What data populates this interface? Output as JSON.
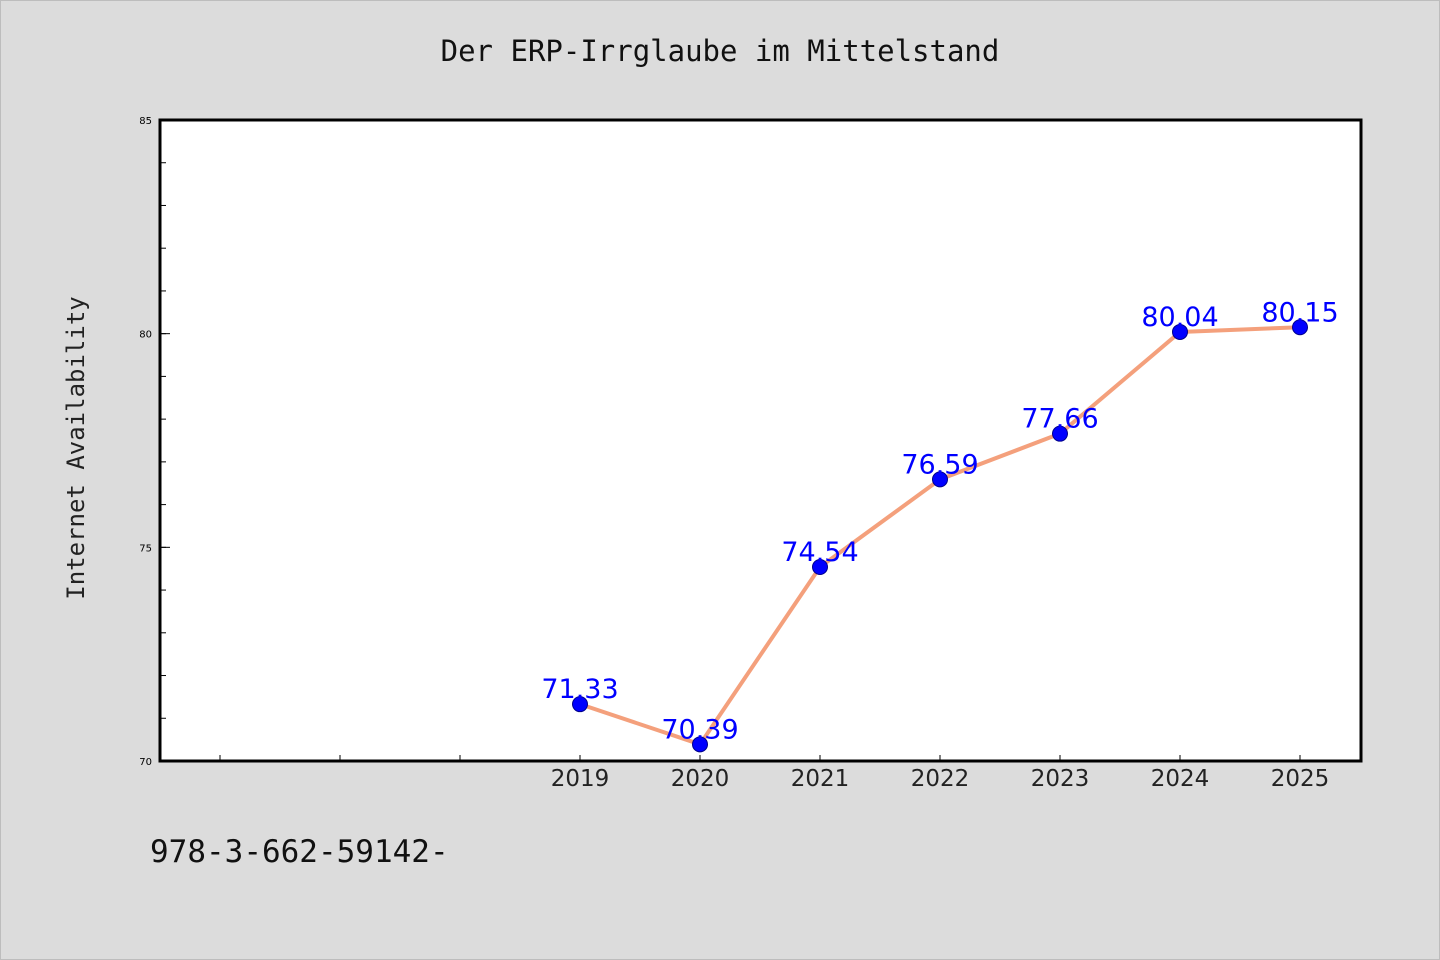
{
  "chart_data": {
    "type": "line",
    "title": "Der ERP-Irrglaube im Mittelstand",
    "xlabel": "",
    "ylabel": "Internet Availability",
    "categories": [
      "",
      "",
      "",
      "2019",
      "2020",
      "2021",
      "2022",
      "2023",
      "2024",
      "2025"
    ],
    "series": [
      {
        "name": "",
        "values": [
          null,
          null,
          null,
          71.33,
          70.39,
          74.54,
          76.59,
          77.66,
          80.04,
          80.15
        ],
        "data_labels": [
          "",
          "",
          "",
          "71.33",
          "70.39",
          "74.54",
          "76.59",
          "77.66",
          "80.04",
          "80.15"
        ]
      }
    ],
    "ylim": [
      70,
      85
    ],
    "yticks": [
      "70",
      "75",
      "80",
      "85"
    ],
    "grid": false,
    "legend": "none",
    "colors": {
      "background": "#dcdcdc",
      "plot_background": "#ffffff",
      "line": "#f4a07c",
      "marker": "#0000ff",
      "data_label": "#0000ff"
    }
  },
  "footer": {
    "text": "978-3-662-59142-"
  }
}
